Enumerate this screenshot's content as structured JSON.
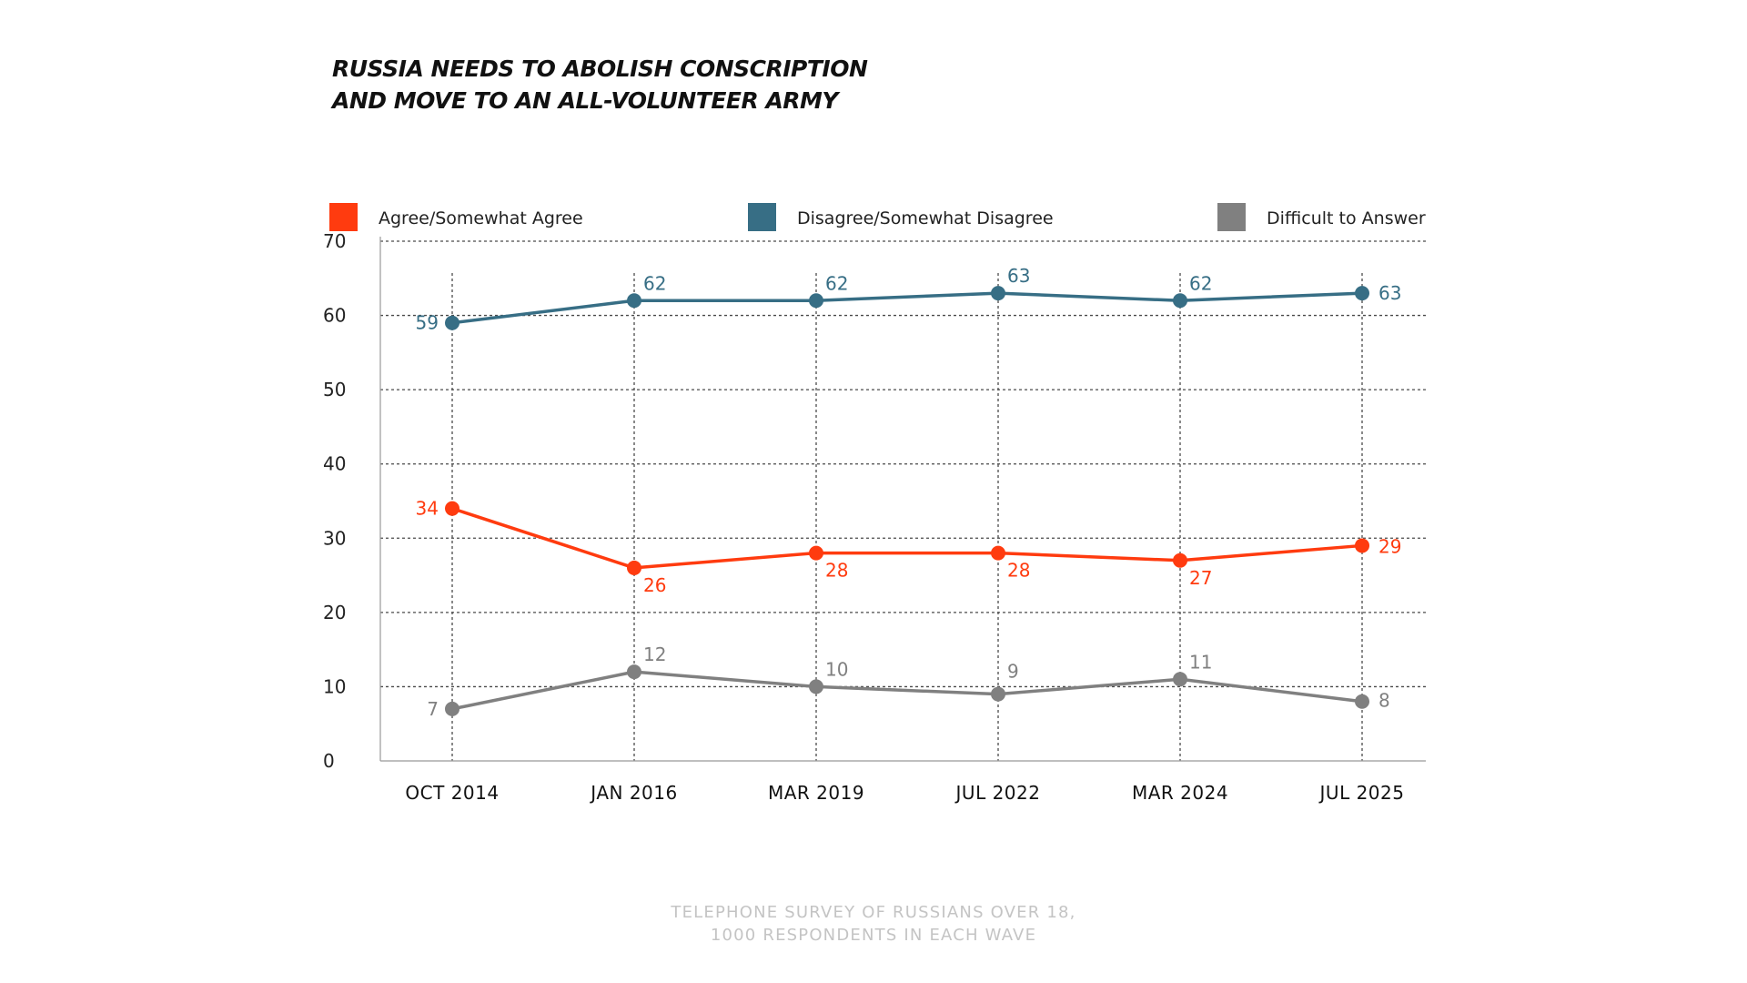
{
  "title_lines": [
    "RUSSIA NEEDS TO ABOLISH CONSCRIPTION",
    "AND MOVE TO AN ALL-VOLUNTEER ARMY"
  ],
  "footnote_lines": [
    "TELEPHONE SURVEY OF RUSSIANS OVER 18,",
    "1000 RESPONDENTS IN EACH WAVE"
  ],
  "chart_data": {
    "type": "line",
    "title": "RUSSIA NEEDS TO ABOLISH CONSCRIPTION AND MOVE TO AN ALL-VOLUNTEER ARMY",
    "categories": [
      "OCT 2014",
      "JAN 2016",
      "MAR 2019",
      "JUL 2022",
      "MAR 2024",
      "JUL 2025"
    ],
    "ylim": [
      0,
      70
    ],
    "yticks": [
      0,
      10,
      20,
      30,
      40,
      50,
      60,
      70
    ],
    "grid": true,
    "legend_position": "top",
    "series": [
      {
        "name": "Agree/Somewhat Agree",
        "color": "#ff3b0f",
        "values": [
          34,
          26,
          28,
          28,
          27,
          29
        ]
      },
      {
        "name": "Disagree/Somewhat Disagree",
        "color": "#376e85",
        "values": [
          59,
          62,
          62,
          63,
          62,
          63
        ]
      },
      {
        "name": "Difficult to Answer",
        "color": "#808080",
        "values": [
          7,
          12,
          10,
          9,
          11,
          8
        ]
      }
    ]
  }
}
